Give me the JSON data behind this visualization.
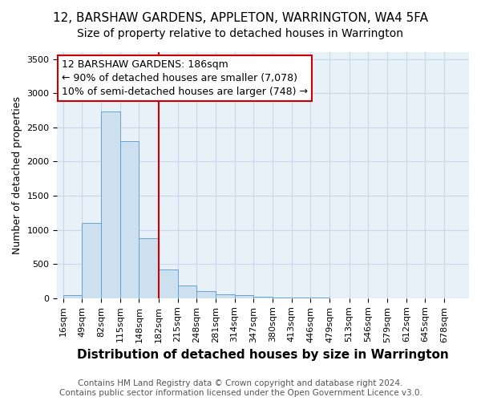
{
  "title": "12, BARSHAW GARDENS, APPLETON, WARRINGTON, WA4 5FA",
  "subtitle": "Size of property relative to detached houses in Warrington",
  "xlabel": "Distribution of detached houses by size in Warrington",
  "ylabel": "Number of detached properties",
  "footer_line1": "Contains HM Land Registry data © Crown copyright and database right 2024.",
  "footer_line2": "Contains public sector information licensed under the Open Government Licence v3.0.",
  "bin_labels": [
    "16sqm",
    "49sqm",
    "82sqm",
    "115sqm",
    "148sqm",
    "182sqm",
    "215sqm",
    "248sqm",
    "281sqm",
    "314sqm",
    "347sqm",
    "380sqm",
    "413sqm",
    "446sqm",
    "479sqm",
    "513sqm",
    "546sqm",
    "579sqm",
    "612sqm",
    "645sqm",
    "678sqm"
  ],
  "bin_edges": [
    16,
    49,
    82,
    115,
    148,
    182,
    215,
    248,
    281,
    314,
    347,
    380,
    413,
    446,
    479,
    513,
    546,
    579,
    612,
    645,
    678
  ],
  "bar_heights": [
    50,
    1100,
    2730,
    2300,
    880,
    420,
    185,
    100,
    60,
    40,
    20,
    15,
    10,
    5,
    3,
    2,
    1,
    1,
    0,
    0
  ],
  "bar_color": "#cce0f0",
  "bar_edge_color": "#5599cc",
  "property_line_x": 182,
  "property_line_color": "#cc0000",
  "annotation_line1": "12 BARSHAW GARDENS: 186sqm",
  "annotation_line2": "← 90% of detached houses are smaller (7,078)",
  "annotation_line3": "10% of semi-detached houses are larger (748) →",
  "annotation_box_color": "#ffffff",
  "annotation_box_edge_color": "#cc0000",
  "ylim": [
    0,
    3600
  ],
  "yticks": [
    0,
    500,
    1000,
    1500,
    2000,
    2500,
    3000,
    3500
  ],
  "grid_color": "#c8d8e8",
  "background_color": "#e8f0f8",
  "title_fontsize": 11,
  "subtitle_fontsize": 10,
  "xlabel_fontsize": 11,
  "ylabel_fontsize": 9,
  "tick_fontsize": 8,
  "annotation_fontsize": 9,
  "footer_fontsize": 7.5
}
